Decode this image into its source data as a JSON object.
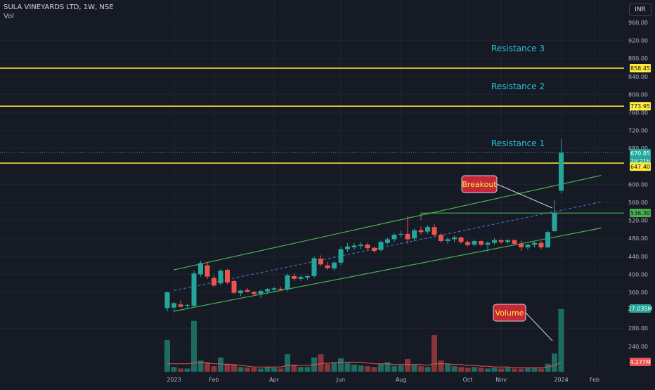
{
  "header": {
    "title": "SULA VINEYARDS LTD, 1W, NSE",
    "volume_label": "Vol",
    "currency": "INR"
  },
  "chart_data": {
    "type": "candlestick",
    "timeframe": "1W",
    "ylim": [
      200,
      980
    ],
    "y_ticks": [
      "960.00",
      "920.00",
      "880.00",
      "840.00",
      "800.00",
      "760.00",
      "720.00",
      "680.00",
      "600.00",
      "560.00",
      "520.00",
      "480.00",
      "440.00",
      "400.00",
      "360.00",
      "320.00",
      "280.00",
      "240.00"
    ],
    "x_ticks": [
      "2023",
      "Feb",
      "Apr",
      "Jun",
      "Aug",
      "Oct",
      "Nov",
      "2024",
      "Feb"
    ],
    "candles": [
      {
        "o": 325,
        "h": 362,
        "l": 318,
        "c": 360,
        "v": 40
      },
      {
        "o": 326,
        "h": 338,
        "l": 315,
        "c": 336,
        "v": 6
      },
      {
        "o": 333,
        "h": 342,
        "l": 326,
        "c": 328,
        "v": 4
      },
      {
        "o": 330,
        "h": 335,
        "l": 322,
        "c": 332,
        "v": 4
      },
      {
        "o": 330,
        "h": 408,
        "l": 326,
        "c": 402,
        "v": 64
      },
      {
        "o": 400,
        "h": 430,
        "l": 395,
        "c": 425,
        "v": 14
      },
      {
        "o": 420,
        "h": 428,
        "l": 390,
        "c": 395,
        "v": 12
      },
      {
        "o": 392,
        "h": 398,
        "l": 372,
        "c": 375,
        "v": 7
      },
      {
        "o": 380,
        "h": 412,
        "l": 376,
        "c": 408,
        "v": 18
      },
      {
        "o": 410,
        "h": 412,
        "l": 378,
        "c": 382,
        "v": 10
      },
      {
        "o": 385,
        "h": 388,
        "l": 356,
        "c": 359,
        "v": 9
      },
      {
        "o": 358,
        "h": 365,
        "l": 352,
        "c": 364,
        "v": 6
      },
      {
        "o": 365,
        "h": 370,
        "l": 360,
        "c": 361,
        "v": 5
      },
      {
        "o": 361,
        "h": 364,
        "l": 352,
        "c": 356,
        "v": 5
      },
      {
        "o": 357,
        "h": 366,
        "l": 348,
        "c": 363,
        "v": 4
      },
      {
        "o": 362,
        "h": 370,
        "l": 356,
        "c": 367,
        "v": 6
      },
      {
        "o": 366,
        "h": 372,
        "l": 360,
        "c": 369,
        "v": 5
      },
      {
        "o": 368,
        "h": 372,
        "l": 364,
        "c": 366,
        "v": 4
      },
      {
        "o": 366,
        "h": 402,
        "l": 362,
        "c": 398,
        "v": 22
      },
      {
        "o": 396,
        "h": 402,
        "l": 385,
        "c": 390,
        "v": 9
      },
      {
        "o": 390,
        "h": 398,
        "l": 385,
        "c": 394,
        "v": 6
      },
      {
        "o": 393,
        "h": 398,
        "l": 388,
        "c": 396,
        "v": 6
      },
      {
        "o": 396,
        "h": 440,
        "l": 392,
        "c": 436,
        "v": 18
      },
      {
        "o": 435,
        "h": 442,
        "l": 418,
        "c": 422,
        "v": 22
      },
      {
        "o": 420,
        "h": 428,
        "l": 410,
        "c": 414,
        "v": 10
      },
      {
        "o": 413,
        "h": 430,
        "l": 408,
        "c": 426,
        "v": 12
      },
      {
        "o": 426,
        "h": 462,
        "l": 420,
        "c": 456,
        "v": 17
      },
      {
        "o": 456,
        "h": 470,
        "l": 450,
        "c": 462,
        "v": 11
      },
      {
        "o": 460,
        "h": 470,
        "l": 455,
        "c": 464,
        "v": 9
      },
      {
        "o": 463,
        "h": 472,
        "l": 456,
        "c": 466,
        "v": 8
      },
      {
        "o": 466,
        "h": 470,
        "l": 455,
        "c": 458,
        "v": 7
      },
      {
        "o": 459,
        "h": 462,
        "l": 448,
        "c": 452,
        "v": 6
      },
      {
        "o": 454,
        "h": 475,
        "l": 450,
        "c": 472,
        "v": 10
      },
      {
        "o": 470,
        "h": 482,
        "l": 466,
        "c": 478,
        "v": 12
      },
      {
        "o": 478,
        "h": 492,
        "l": 472,
        "c": 488,
        "v": 7
      },
      {
        "o": 488,
        "h": 496,
        "l": 482,
        "c": 490,
        "v": 8
      },
      {
        "o": 490,
        "h": 530,
        "l": 468,
        "c": 478,
        "v": 16
      },
      {
        "o": 480,
        "h": 502,
        "l": 474,
        "c": 498,
        "v": 9
      },
      {
        "o": 498,
        "h": 506,
        "l": 488,
        "c": 494,
        "v": 7
      },
      {
        "o": 495,
        "h": 510,
        "l": 490,
        "c": 505,
        "v": 6
      },
      {
        "o": 505,
        "h": 512,
        "l": 482,
        "c": 488,
        "v": 46
      },
      {
        "o": 488,
        "h": 492,
        "l": 470,
        "c": 474,
        "v": 14
      },
      {
        "o": 474,
        "h": 482,
        "l": 468,
        "c": 478,
        "v": 10
      },
      {
        "o": 478,
        "h": 486,
        "l": 472,
        "c": 482,
        "v": 7
      },
      {
        "o": 482,
        "h": 484,
        "l": 468,
        "c": 472,
        "v": 6
      },
      {
        "o": 472,
        "h": 475,
        "l": 462,
        "c": 465,
        "v": 5
      },
      {
        "o": 466,
        "h": 478,
        "l": 462,
        "c": 474,
        "v": 6
      },
      {
        "o": 474,
        "h": 476,
        "l": 462,
        "c": 466,
        "v": 5
      },
      {
        "o": 466,
        "h": 474,
        "l": 450,
        "c": 470,
        "v": 4
      },
      {
        "o": 470,
        "h": 480,
        "l": 466,
        "c": 476,
        "v": 5
      },
      {
        "o": 476,
        "h": 478,
        "l": 468,
        "c": 472,
        "v": 4
      },
      {
        "o": 472,
        "h": 478,
        "l": 468,
        "c": 476,
        "v": 5
      },
      {
        "o": 476,
        "h": 478,
        "l": 464,
        "c": 468,
        "v": 4
      },
      {
        "o": 468,
        "h": 476,
        "l": 452,
        "c": 460,
        "v": 4
      },
      {
        "o": 460,
        "h": 468,
        "l": 455,
        "c": 466,
        "v": 5
      },
      {
        "o": 466,
        "h": 472,
        "l": 460,
        "c": 470,
        "v": 5
      },
      {
        "o": 470,
        "h": 474,
        "l": 456,
        "c": 460,
        "v": 4
      },
      {
        "o": 460,
        "h": 498,
        "l": 458,
        "c": 494,
        "v": 10
      },
      {
        "o": 496,
        "h": 565,
        "l": 494,
        "c": 536.3,
        "v": 23
      },
      {
        "o": 586,
        "h": 701,
        "l": 580,
        "c": 670.85,
        "v": 79
      }
    ],
    "volume_ma": [
      10,
      10,
      10,
      10,
      11,
      12,
      11,
      10,
      10,
      9,
      9,
      8,
      7,
      6,
      6,
      6,
      6,
      6,
      8,
      8,
      8,
      8,
      9,
      10,
      11,
      11,
      12,
      12,
      12,
      12,
      11,
      10,
      10,
      10,
      9,
      9,
      9,
      9,
      9,
      8,
      10,
      10,
      10,
      9,
      9,
      8,
      8,
      7,
      7,
      6,
      6,
      6,
      5,
      5,
      5,
      5,
      5,
      6,
      8,
      12
    ],
    "channel": {
      "upper": {
        "start_index": 1,
        "start_value": 410,
        "end_index": 65,
        "end_value": 620
      },
      "lower": {
        "start_index": 1,
        "start_value": 318,
        "end_index": 65,
        "end_value": 503
      },
      "mid": {
        "start_index": 1,
        "start_value": 364,
        "end_index": 65,
        "end_value": 561
      }
    },
    "breakout_level": {
      "value": 536.3,
      "start_index": 38,
      "end_index": 65
    },
    "resistance_levels": [
      {
        "name": "Resistance 1",
        "value": 647.4
      },
      {
        "name": "Resistance 2",
        "value": 773.95
      },
      {
        "name": "Resistance 3",
        "value": 858.45
      }
    ],
    "price_labels": {
      "r3": "858.45",
      "r2": "773.95",
      "last": "670.85",
      "countdown": "2d 21h",
      "r1": "647.40",
      "breakout": "536.30",
      "volume": "27.035M",
      "volume_ma": "4.277M"
    },
    "annotations": [
      {
        "text": "Breakout",
        "target": "breakout"
      },
      {
        "text": "Volume",
        "target": "volume"
      }
    ],
    "colors": {
      "up": "#26a69a",
      "down": "#ef5350",
      "resistance_line": "#ffeb3b",
      "channel_line": "#4caf50",
      "annotation_text": "#26c6da",
      "callout_fill": "#c62838",
      "callout_text": "#ffeb3b",
      "volume_ma": "#ef5350"
    }
  }
}
